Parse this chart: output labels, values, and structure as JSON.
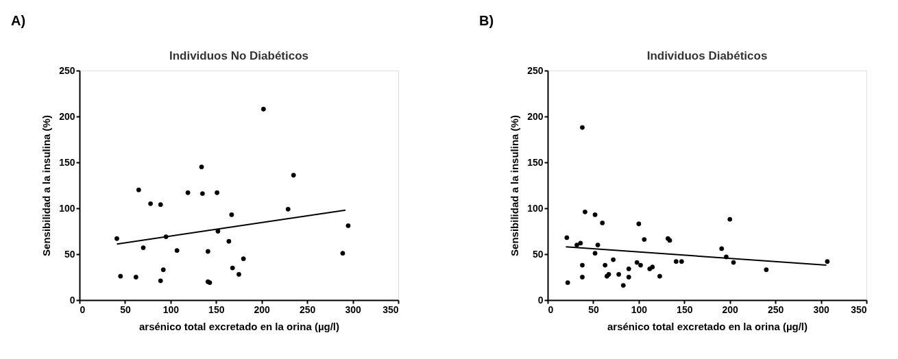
{
  "chart_data": [
    {
      "type": "scatter",
      "title": "Individuos No Diabéticos",
      "xlabel": "arsénico total excretado en la orina (µg/l)",
      "ylabel": "Sensibilidad a la insulina  (%)",
      "annotations": [
        "A)"
      ],
      "xlim": [
        0,
        350
      ],
      "xticks": [
        0,
        50,
        100,
        150,
        200,
        250,
        300,
        350
      ],
      "ylim": [
        0,
        250
      ],
      "yticks": [
        0,
        50,
        100,
        150,
        200,
        250
      ],
      "grid": false,
      "legend": false,
      "series": [
        {
          "marker": "circle",
          "color": "#000000",
          "x": [
            202,
            134,
            235,
            65,
            119,
            135,
            151,
            78,
            89,
            229,
            167,
            295,
            152,
            41,
            95,
            164,
            70,
            107,
            141,
            289,
            180,
            92,
            168,
            45,
            62,
            175,
            89,
            141,
            143
          ],
          "values": [
            208,
            145,
            136,
            120,
            117,
            116,
            117,
            105,
            104,
            99,
            93,
            81,
            75,
            67,
            69,
            64,
            57,
            54,
            53,
            51,
            45,
            33,
            35,
            26,
            25,
            28,
            21,
            20,
            19
          ]
        },
        {
          "type": "line",
          "color": "#000000",
          "line_style": "solid",
          "x": [
            41,
            292
          ],
          "values": [
            61,
            98
          ]
        }
      ]
    },
    {
      "type": "scatter",
      "title": "Individuos Diabéticos",
      "xlabel": "arsénico total excretado en la orina (µg/l)",
      "ylabel": "Sensibilidad a la insulina  (%)",
      "annotations": [
        "B)"
      ],
      "xlim": [
        0,
        350
      ],
      "xticks": [
        0,
        50,
        100,
        150,
        200,
        250,
        300,
        350
      ],
      "ylim": [
        0,
        250
      ],
      "yticks": [
        0,
        50,
        100,
        150,
        200,
        250
      ],
      "grid": false,
      "legend": false,
      "series": [
        {
          "marker": "circle",
          "color": "#000000",
          "x": [
            38,
            41,
            52,
            60,
            100,
            200,
            21,
            32,
            36,
            55,
            106,
            132,
            134,
            52,
            191,
            196,
            204,
            307,
            240,
            38,
            63,
            72,
            98,
            102,
            141,
            147,
            112,
            115,
            89,
            78,
            65,
            67,
            38,
            89,
            123,
            22,
            83
          ],
          "values": [
            188,
            96,
            93,
            84,
            83,
            88,
            68,
            60,
            62,
            60,
            66,
            67,
            65,
            51,
            56,
            47,
            41,
            42,
            33,
            38,
            38,
            44,
            41,
            38,
            42,
            42,
            34,
            36,
            34,
            28,
            26,
            28,
            25,
            25,
            26,
            19,
            16
          ]
        },
        {
          "type": "line",
          "color": "#000000",
          "line_style": "solid",
          "x": [
            20,
            306
          ],
          "values": [
            58,
            38
          ]
        }
      ]
    }
  ]
}
